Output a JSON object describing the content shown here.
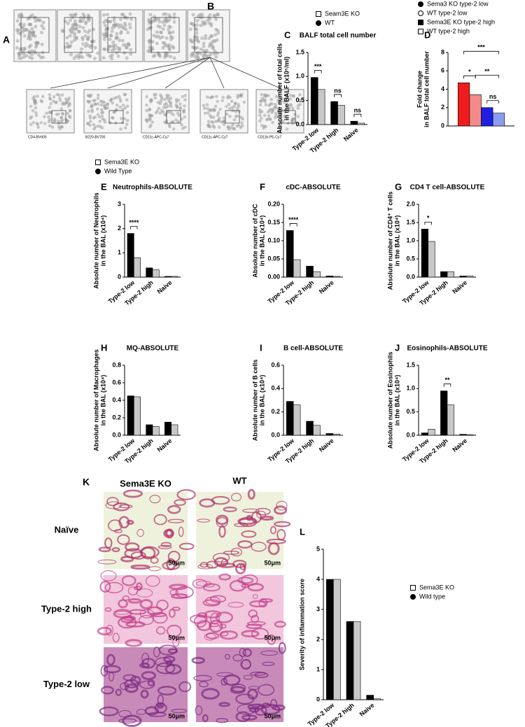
{
  "labels": [
    "A",
    "B",
    "K"
  ],
  "flow": {
    "axes": [
      "CD4-BV605",
      "B220-BV700",
      "CD11c-APC-Cy7",
      "CD11c-APC-Cy7",
      "CD11b-PE-Cy7"
    ]
  },
  "histology": {
    "columns": [
      "Sema3E KO",
      "WT"
    ],
    "rows": [
      "Naïve",
      "Type-2 high",
      "Type-2 low"
    ],
    "scale_bar": "50μm"
  },
  "chart_data": [
    {
      "type": "bar",
      "panel": "C",
      "title": "BALF total cell number",
      "ylabel": [
        "Absolute number of total cells",
        "in the BALF (x10⁵/ml)"
      ],
      "categories": [
        "Type-2 low",
        "Type-2 high",
        "Naive"
      ],
      "series": [
        {
          "name": "Seam3E KO",
          "color": "#000000",
          "marker": "open-square",
          "values": [
            0.98,
            0.48,
            0.07
          ]
        },
        {
          "name": "WT",
          "color": "#c8c8c8",
          "marker": "filled-circle",
          "values": [
            0.73,
            0.4,
            0.03
          ]
        }
      ],
      "ylim": [
        0,
        1.5
      ],
      "yticks": [
        {
          "value": 0,
          "label": "0.0"
        },
        {
          "value": 0.5,
          "label": "0.5"
        },
        {
          "value": 1,
          "label": "1.0"
        },
        {
          "value": 1.5,
          "label": "1.5"
        }
      ],
      "annotations": [
        {
          "text": "***",
          "category": 0
        },
        {
          "text": "ns",
          "category": 1
        },
        {
          "text": "ns",
          "category": 2
        }
      ]
    },
    {
      "type": "bar",
      "panel": "D",
      "ylabel": [
        "Fold change",
        "in BALF total cell number"
      ],
      "categories": [
        null
      ],
      "series": [
        {
          "name": "Sema3 KO type-2 low",
          "color": "#ee1c1c",
          "marker": "filled-circle",
          "values": [
            4.7
          ]
        },
        {
          "name": "WT type-2 low",
          "color": "#f28a8a",
          "marker": "open-circle",
          "values": [
            3.4
          ]
        },
        {
          "name": "Sema3E KO type-2 high",
          "color": "#1f1fe0",
          "marker": "filled-square",
          "values": [
            2.0
          ]
        },
        {
          "name": "WT type-2 high",
          "color": "#8c9cf0",
          "marker": "open-square",
          "values": [
            1.4
          ]
        }
      ],
      "ylim": [
        0,
        8
      ],
      "yticks": [
        0,
        2,
        4,
        6,
        8
      ],
      "annotations": [
        {
          "text": "***",
          "bars": [
            0,
            3
          ]
        },
        {
          "text": "*",
          "bars": [
            0,
            1
          ]
        },
        {
          "text": "**",
          "bars": [
            1,
            3
          ]
        },
        {
          "text": "ns",
          "bars": [
            2,
            3
          ]
        }
      ]
    },
    {
      "type": "bar",
      "panel": "E",
      "title": "Neutrophils-ABSOLUTE",
      "ylabel": [
        "Absolute number of Neutrophils",
        "in the BAL (x10⁴)"
      ],
      "categories": [
        "Type-2 low",
        "Type-2 high",
        "Naive"
      ],
      "series": [
        {
          "name": "Sema3E KO",
          "color": "#000000",
          "marker": "open-square",
          "values": [
            1.8,
            0.38,
            0.03
          ]
        },
        {
          "name": "Wild Type",
          "color": "#c8c8c8",
          "marker": "filled-circle",
          "values": [
            0.8,
            0.3,
            0.03
          ]
        }
      ],
      "ylim": [
        0,
        3
      ],
      "yticks": [
        0,
        1,
        2,
        3
      ],
      "annotations": [
        {
          "text": "****",
          "category": 0
        }
      ]
    },
    {
      "type": "bar",
      "panel": "F",
      "title": "cDC-ABSOLUTE",
      "ylabel": [
        "Absolute number of cDC",
        "in the BAL (x10⁴)"
      ],
      "categories": [
        "Type-2 low",
        "Type-2 high",
        "Naive"
      ],
      "series": [
        {
          "color": "#000000",
          "values": [
            0.128,
            0.03,
            0.003
          ]
        },
        {
          "color": "#c8c8c8",
          "values": [
            0.048,
            0.015,
            0.002
          ]
        }
      ],
      "ylim": [
        0,
        0.2
      ],
      "yticks": [
        {
          "value": 0,
          "label": "0.00"
        },
        {
          "value": 0.05,
          "label": "0.05"
        },
        {
          "value": 0.1,
          "label": "0.10"
        },
        {
          "value": 0.15,
          "label": "0.15"
        },
        {
          "value": 0.2,
          "label": "0.20"
        }
      ],
      "annotations": [
        {
          "text": "****",
          "category": 0
        }
      ]
    },
    {
      "type": "bar",
      "panel": "G",
      "title": "CD4 T cell-ABSOLUTE",
      "ylabel": [
        "Absolute number of CD4⁺ T cells",
        "in the BAL (x10⁴)"
      ],
      "categories": [
        "Type-2 low",
        "Type-2 high",
        "Naive"
      ],
      "series": [
        {
          "color": "#000000",
          "values": [
            1.32,
            0.15,
            0.03
          ]
        },
        {
          "color": "#c8c8c8",
          "values": [
            0.98,
            0.15,
            0.03
          ]
        }
      ],
      "ylim": [
        0,
        2
      ],
      "yticks": [
        {
          "value": 0,
          "label": "0.0"
        },
        {
          "value": 0.5,
          "label": "0.5"
        },
        {
          "value": 1,
          "label": "1.0"
        },
        {
          "value": 1.5,
          "label": "1.5"
        },
        {
          "value": 2,
          "label": "2.0"
        }
      ],
      "annotations": [
        {
          "text": "*",
          "category": 0
        }
      ]
    },
    {
      "type": "bar",
      "panel": "H",
      "title": "MQ-ABSOLUTE",
      "ylabel": [
        "Absolute number of Macrophages",
        "in the BAL (x10⁴)"
      ],
      "categories": [
        "Type-2 low",
        "Type-2 high",
        "Naive"
      ],
      "series": [
        {
          "color": "#000000",
          "values": [
            0.45,
            0.12,
            0.15
          ]
        },
        {
          "color": "#c8c8c8",
          "values": [
            0.44,
            0.1,
            0.12
          ]
        }
      ],
      "ylim": [
        0,
        0.8
      ],
      "yticks": [
        {
          "value": 0,
          "label": "0.0"
        },
        {
          "value": 0.2,
          "label": "0.2"
        },
        {
          "value": 0.4,
          "label": "0.4"
        },
        {
          "value": 0.6,
          "label": "0.6"
        },
        {
          "value": 0.8,
          "label": "0.8"
        }
      ],
      "annotations": []
    },
    {
      "type": "bar",
      "panel": "I",
      "title": "B cell-ABSOLUTE",
      "ylabel": [
        "Absolute number of B cells",
        "in the BAL (x10⁴)"
      ],
      "categories": [
        "Type-2 low",
        "Type-2 high",
        "Naive"
      ],
      "series": [
        {
          "color": "#000000",
          "values": [
            0.29,
            0.12,
            0.015
          ]
        },
        {
          "color": "#c8c8c8",
          "values": [
            0.26,
            0.085,
            0.01
          ]
        }
      ],
      "ylim": [
        0,
        0.6
      ],
      "yticks": [
        {
          "value": 0,
          "label": "0.0"
        },
        {
          "value": 0.2,
          "label": "0.2"
        },
        {
          "value": 0.4,
          "label": "0.4"
        },
        {
          "value": 0.6,
          "label": "0.6"
        }
      ],
      "annotations": []
    },
    {
      "type": "bar",
      "panel": "J",
      "title": "Eosinophils-ABSOLUTE",
      "ylabel": [
        "Absolute number of Eosinophils",
        "in the BAL (x10⁴)"
      ],
      "categories": [
        "Type-2 low",
        "Type-2 high",
        "Naive"
      ],
      "series": [
        {
          "color": "#000000",
          "values": [
            0.05,
            0.95,
            0.02
          ]
        },
        {
          "color": "#c8c8c8",
          "values": [
            0.13,
            0.65,
            0.01
          ]
        }
      ],
      "ylim": [
        0,
        1.5
      ],
      "yticks": [
        {
          "value": 0,
          "label": "0.0"
        },
        {
          "value": 0.5,
          "label": "0.5"
        },
        {
          "value": 1,
          "label": "1.0"
        },
        {
          "value": 1.5,
          "label": "1.5"
        }
      ],
      "annotations": [
        {
          "text": "**",
          "category": 1
        }
      ]
    },
    {
      "type": "bar",
      "panel": "L",
      "ylabel": [
        "Severity of inflammation score"
      ],
      "categories": [
        "Type-2 low",
        "Type-2 high",
        "Naive"
      ],
      "series": [
        {
          "name": "Sema3E KO",
          "color": "#000000",
          "marker": "open-square",
          "values": [
            4.0,
            2.6,
            0.15
          ]
        },
        {
          "name": "Wild type",
          "color": "#c8c8c8",
          "marker": "filled-circle",
          "values": [
            4.0,
            2.6,
            0.03
          ]
        }
      ],
      "ylim": [
        0,
        5
      ],
      "yticks": [
        0,
        1,
        2,
        3,
        4,
        5
      ],
      "annotations": []
    }
  ]
}
